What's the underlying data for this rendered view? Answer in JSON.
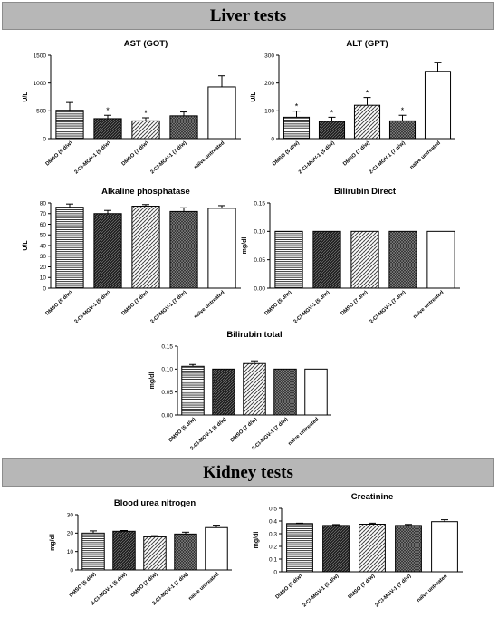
{
  "sections": {
    "liver": "Liver tests",
    "kidney": "Kidney tests"
  },
  "chart_data": [
    {
      "id": "ast",
      "type": "bar",
      "title": "AST (GOT)",
      "ylabel": "U/L",
      "ylim": [
        0,
        1500
      ],
      "yticks": [
        0,
        500,
        1000,
        1500
      ],
      "categories": [
        "DMSO (5 d/w)",
        "2-Cl-MGV-1 (5 d/w)",
        "DMSO (7 d/w)",
        "2-Cl-MGV-1 (7 d/w)",
        "naïve untreated"
      ],
      "values": [
        510,
        360,
        320,
        410,
        930
      ],
      "errors": [
        140,
        60,
        55,
        70,
        200
      ],
      "annotations": [
        "",
        "*",
        "*",
        "",
        ""
      ]
    },
    {
      "id": "alt",
      "type": "bar",
      "title": "ALT (GPT)",
      "ylabel": "U/L",
      "ylim": [
        0,
        300
      ],
      "yticks": [
        0,
        100,
        200,
        300
      ],
      "categories": [
        "DMSO (5 d/w)",
        "2-Cl-MGV-1 (5 d/w)",
        "DMSO (7 d/w)",
        "2-Cl-MGV-1 (7 d/w)",
        "naïve untreated"
      ],
      "values": [
        77,
        62,
        120,
        64,
        242
      ],
      "errors": [
        22,
        15,
        28,
        20,
        33
      ],
      "annotations": [
        "*",
        "*",
        "*",
        "*",
        ""
      ]
    },
    {
      "id": "alp",
      "type": "bar",
      "title": "Alkaline phosphatase",
      "ylabel": "U/L",
      "ylim": [
        0,
        80
      ],
      "yticks": [
        0,
        10,
        20,
        30,
        40,
        50,
        60,
        70,
        80
      ],
      "categories": [
        "DMSO (5 d/w)",
        "2-Cl-MGV-1 (5 d/w)",
        "DMSO (7 d/w)",
        "2-Cl-MGV-1 (7 d/w)",
        "naïve untreated"
      ],
      "values": [
        76,
        70,
        77,
        72,
        75
      ],
      "errors": [
        3,
        3,
        1.5,
        3.5,
        2.5
      ],
      "annotations": [
        "",
        "",
        "",
        "",
        ""
      ]
    },
    {
      "id": "bild",
      "type": "bar",
      "title": "Bilirubin Direct",
      "ylabel": "mg/dl",
      "ylim": [
        0,
        0.15
      ],
      "yticks": [
        "0.00",
        "0.05",
        "0.10",
        "0.15"
      ],
      "categories": [
        "DMSO (5 d/w)",
        "2-Cl-MGV-1 (5 d/w)",
        "DMSO (7 d/w)",
        "2-Cl-MGV-1 (7 d/w)",
        "naïve untreated"
      ],
      "values": [
        0.1,
        0.1,
        0.1,
        0.1,
        0.1
      ],
      "errors": [
        0,
        0,
        0,
        0,
        0
      ],
      "annotations": [
        "",
        "",
        "",
        "",
        ""
      ]
    },
    {
      "id": "bilt",
      "type": "bar",
      "title": "Bilirubin total",
      "ylabel": "mg/dl",
      "ylim": [
        0,
        0.15
      ],
      "yticks": [
        "0.00",
        "0.05",
        "0.10",
        "0.15"
      ],
      "categories": [
        "DMSO (5 d/w)",
        "2-Cl-MGV-1 (5 d/w)",
        "DMSO (7 d/w)",
        "2-Cl-MGV-1 (7 d/w)",
        "naïve untreated"
      ],
      "values": [
        0.106,
        0.1,
        0.112,
        0.1,
        0.1
      ],
      "errors": [
        0.004,
        0,
        0.006,
        0,
        0
      ],
      "annotations": [
        "",
        "",
        "",
        "",
        ""
      ]
    },
    {
      "id": "bun",
      "type": "bar",
      "title": "Blood urea nitrogen",
      "ylabel": "mg/dl",
      "ylim": [
        0,
        30
      ],
      "yticks": [
        0,
        10,
        20,
        30
      ],
      "categories": [
        "DMSO (5 d/w)",
        "2-Cl-MGV-1 (5 d/w)",
        "DMSO (7 d/w)",
        "2-Cl-MGV-1 (7 d/w)",
        "naïve untreated"
      ],
      "values": [
        20,
        21,
        18,
        19.5,
        23
      ],
      "errors": [
        1.2,
        0.4,
        0.6,
        1,
        1.3
      ],
      "annotations": [
        "",
        "",
        "",
        "",
        ""
      ]
    },
    {
      "id": "crea",
      "type": "bar",
      "title": "Creatinine",
      "ylabel": "mg/dl",
      "ylim": [
        0,
        0.5
      ],
      "yticks": [
        0.0,
        0.1,
        0.2,
        0.3,
        0.4,
        0.5
      ],
      "categories": [
        "DMSO (5 d/w)",
        "2-Cl-MGV-1 (5 d/w)",
        "DMSO (7 d/w)",
        "2-Cl-MGV-1 (7 d/w)",
        "naïve untreated"
      ],
      "values": [
        0.38,
        0.365,
        0.375,
        0.365,
        0.395
      ],
      "errors": [
        0.003,
        0.007,
        0.008,
        0.008,
        0.015
      ],
      "annotations": [
        "",
        "",
        "",
        "",
        ""
      ]
    }
  ]
}
